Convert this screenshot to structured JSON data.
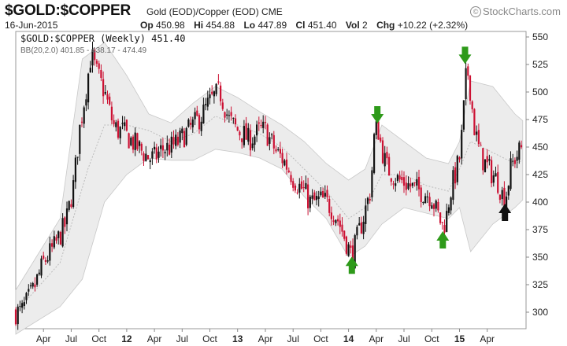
{
  "header": {
    "symbol": "$GOLD:$COPPER",
    "description": "Gold (EOD)/Copper (EOD)",
    "exchange": "CME",
    "brand": "StockCharts.com",
    "date": "16-Jun-2015",
    "quote": [
      {
        "label": "Op",
        "value": "450.98"
      },
      {
        "label": "Hi",
        "value": "454.88"
      },
      {
        "label": "Lo",
        "value": "447.89"
      },
      {
        "label": "Cl",
        "value": "451.40"
      },
      {
        "label": "Vol",
        "value": "2"
      },
      {
        "label": "Chg",
        "value": "+10.22 (+2.32%)"
      }
    ]
  },
  "chart_data": {
    "type": "candlestick",
    "title": "$GOLD:$COPPER (Weekly) 451.40",
    "subtitle": "BB(20,2.0) 401.85 - 438.17 - 474.49",
    "frequency": "weekly",
    "ylim": [
      285,
      555
    ],
    "y_ticks": [
      300,
      325,
      350,
      375,
      400,
      425,
      450,
      475,
      500,
      525,
      550
    ],
    "x_ticks": [
      {
        "label": "Apr",
        "bold": false
      },
      {
        "label": "Jul",
        "bold": false
      },
      {
        "label": "Oct",
        "bold": false
      },
      {
        "label": "12",
        "bold": true
      },
      {
        "label": "Apr",
        "bold": false
      },
      {
        "label": "Jul",
        "bold": false
      },
      {
        "label": "Oct",
        "bold": false
      },
      {
        "label": "13",
        "bold": true
      },
      {
        "label": "Apr",
        "bold": false
      },
      {
        "label": "Jul",
        "bold": false
      },
      {
        "label": "Oct",
        "bold": false
      },
      {
        "label": "14",
        "bold": true
      },
      {
        "label": "Apr",
        "bold": false
      },
      {
        "label": "Jul",
        "bold": false
      },
      {
        "label": "Oct",
        "bold": false
      },
      {
        "label": "15",
        "bold": true
      },
      {
        "label": "Apr",
        "bold": false
      }
    ],
    "up_color": "#111111",
    "down_color": "#cc1133",
    "band_color": "#ececec",
    "price_path": [
      [
        2011.05,
        300
      ],
      [
        2011.15,
        318
      ],
      [
        2011.25,
        345
      ],
      [
        2011.35,
        360
      ],
      [
        2011.45,
        380
      ],
      [
        2011.52,
        415
      ],
      [
        2011.58,
        470
      ],
      [
        2011.63,
        500
      ],
      [
        2011.68,
        535
      ],
      [
        2011.72,
        520
      ],
      [
        2011.76,
        510
      ],
      [
        2011.8,
        500
      ],
      [
        2011.84,
        485
      ],
      [
        2011.88,
        470
      ],
      [
        2011.92,
        465
      ],
      [
        2011.96,
        465
      ],
      [
        2012.0,
        460
      ],
      [
        2012.05,
        455
      ],
      [
        2012.1,
        450
      ],
      [
        2012.15,
        445
      ],
      [
        2012.2,
        440
      ],
      [
        2012.25,
        440
      ],
      [
        2012.32,
        448
      ],
      [
        2012.4,
        450
      ],
      [
        2012.47,
        455
      ],
      [
        2012.53,
        462
      ],
      [
        2012.6,
        470
      ],
      [
        2012.67,
        478
      ],
      [
        2012.73,
        488
      ],
      [
        2012.79,
        496
      ],
      [
        2012.84,
        500
      ],
      [
        2012.88,
        488
      ],
      [
        2012.92,
        475
      ],
      [
        2012.96,
        470
      ],
      [
        2013.0,
        465
      ],
      [
        2013.05,
        462
      ],
      [
        2013.1,
        456
      ],
      [
        2013.15,
        460
      ],
      [
        2013.2,
        465
      ],
      [
        2013.25,
        465
      ],
      [
        2013.3,
        455
      ],
      [
        2013.35,
        445
      ],
      [
        2013.4,
        440
      ],
      [
        2013.45,
        432
      ],
      [
        2013.5,
        422
      ],
      [
        2013.55,
        415
      ],
      [
        2013.6,
        410
      ],
      [
        2013.65,
        400
      ],
      [
        2013.7,
        400
      ],
      [
        2013.75,
        402
      ],
      [
        2013.8,
        400
      ],
      [
        2013.85,
        394
      ],
      [
        2013.9,
        385
      ],
      [
        2013.95,
        372
      ],
      [
        2014.0,
        358
      ],
      [
        2014.03,
        350
      ],
      [
        2014.08,
        368
      ],
      [
        2014.13,
        385
      ],
      [
        2014.17,
        400
      ],
      [
        2014.2,
        412
      ],
      [
        2014.23,
        458
      ],
      [
        2014.26,
        470
      ],
      [
        2014.3,
        448
      ],
      [
        2014.34,
        432
      ],
      [
        2014.4,
        425
      ],
      [
        2014.45,
        420
      ],
      [
        2014.5,
        418
      ],
      [
        2014.55,
        415
      ],
      [
        2014.6,
        412
      ],
      [
        2014.65,
        410
      ],
      [
        2014.7,
        408
      ],
      [
        2014.75,
        405
      ],
      [
        2014.78,
        395
      ],
      [
        2014.82,
        385
      ],
      [
        2014.85,
        378
      ],
      [
        2014.88,
        385
      ],
      [
        2014.91,
        405
      ],
      [
        2014.94,
        418
      ],
      [
        2014.97,
        428
      ],
      [
        2015.0,
        440
      ],
      [
        2015.03,
        470
      ],
      [
        2015.05,
        505
      ],
      [
        2015.07,
        522
      ],
      [
        2015.1,
        500
      ],
      [
        2015.13,
        470
      ],
      [
        2015.17,
        450
      ],
      [
        2015.2,
        440
      ],
      [
        2015.25,
        432
      ],
      [
        2015.3,
        425
      ],
      [
        2015.35,
        418
      ],
      [
        2015.38,
        408
      ],
      [
        2015.41,
        402
      ],
      [
        2015.43,
        412
      ],
      [
        2015.46,
        430
      ],
      [
        2015.5,
        440
      ],
      [
        2015.54,
        446
      ],
      [
        2015.57,
        451
      ]
    ],
    "band_middle": [
      [
        2011.0,
        300
      ],
      [
        2011.4,
        345
      ],
      [
        2011.65,
        430
      ],
      [
        2011.8,
        470
      ],
      [
        2012.0,
        470
      ],
      [
        2012.2,
        465
      ],
      [
        2012.4,
        455
      ],
      [
        2012.6,
        462
      ],
      [
        2012.8,
        478
      ],
      [
        2013.0,
        470
      ],
      [
        2013.2,
        462
      ],
      [
        2013.4,
        450
      ],
      [
        2013.6,
        430
      ],
      [
        2013.8,
        410
      ],
      [
        2014.0,
        385
      ],
      [
        2014.15,
        395
      ],
      [
        2014.3,
        425
      ],
      [
        2014.5,
        425
      ],
      [
        2014.7,
        415
      ],
      [
        2014.9,
        410
      ],
      [
        2015.0,
        430
      ],
      [
        2015.1,
        455
      ],
      [
        2015.3,
        445
      ],
      [
        2015.5,
        435
      ],
      [
        2015.57,
        438
      ]
    ],
    "band_upper": [
      [
        2011.0,
        320
      ],
      [
        2011.4,
        385
      ],
      [
        2011.6,
        530
      ],
      [
        2011.8,
        545
      ],
      [
        2012.0,
        515
      ],
      [
        2012.2,
        480
      ],
      [
        2012.4,
        472
      ],
      [
        2012.6,
        490
      ],
      [
        2012.8,
        505
      ],
      [
        2013.0,
        495
      ],
      [
        2013.2,
        482
      ],
      [
        2013.4,
        470
      ],
      [
        2013.6,
        455
      ],
      [
        2013.8,
        435
      ],
      [
        2014.0,
        420
      ],
      [
        2014.15,
        430
      ],
      [
        2014.3,
        470
      ],
      [
        2014.5,
        455
      ],
      [
        2014.7,
        440
      ],
      [
        2014.9,
        435
      ],
      [
        2015.0,
        455
      ],
      [
        2015.1,
        510
      ],
      [
        2015.3,
        505
      ],
      [
        2015.5,
        480
      ],
      [
        2015.57,
        474
      ]
    ],
    "band_lower": [
      [
        2011.0,
        280
      ],
      [
        2011.4,
        305
      ],
      [
        2011.6,
        330
      ],
      [
        2011.8,
        400
      ],
      [
        2012.0,
        425
      ],
      [
        2012.2,
        440
      ],
      [
        2012.4,
        438
      ],
      [
        2012.6,
        438
      ],
      [
        2012.8,
        448
      ],
      [
        2013.0,
        445
      ],
      [
        2013.2,
        440
      ],
      [
        2013.4,
        430
      ],
      [
        2013.6,
        405
      ],
      [
        2013.8,
        385
      ],
      [
        2014.0,
        350
      ],
      [
        2014.15,
        360
      ],
      [
        2014.3,
        380
      ],
      [
        2014.5,
        395
      ],
      [
        2014.7,
        390
      ],
      [
        2014.9,
        385
      ],
      [
        2015.0,
        395
      ],
      [
        2015.1,
        355
      ],
      [
        2015.3,
        380
      ],
      [
        2015.5,
        395
      ],
      [
        2015.57,
        402
      ]
    ],
    "annotations": [
      {
        "type": "arrow",
        "direction": "up",
        "color": "#2e9a1a",
        "x": 2014.03,
        "y": 342
      },
      {
        "type": "arrow",
        "direction": "down",
        "color": "#2e9a1a",
        "x": 2014.26,
        "y": 480
      },
      {
        "type": "arrow",
        "direction": "up",
        "color": "#2e9a1a",
        "x": 2014.85,
        "y": 365
      },
      {
        "type": "arrow",
        "direction": "down",
        "color": "#2e9a1a",
        "x": 2015.05,
        "y": 534
      },
      {
        "type": "arrow",
        "direction": "up",
        "color": "#111111",
        "x": 2015.41,
        "y": 390
      }
    ]
  }
}
